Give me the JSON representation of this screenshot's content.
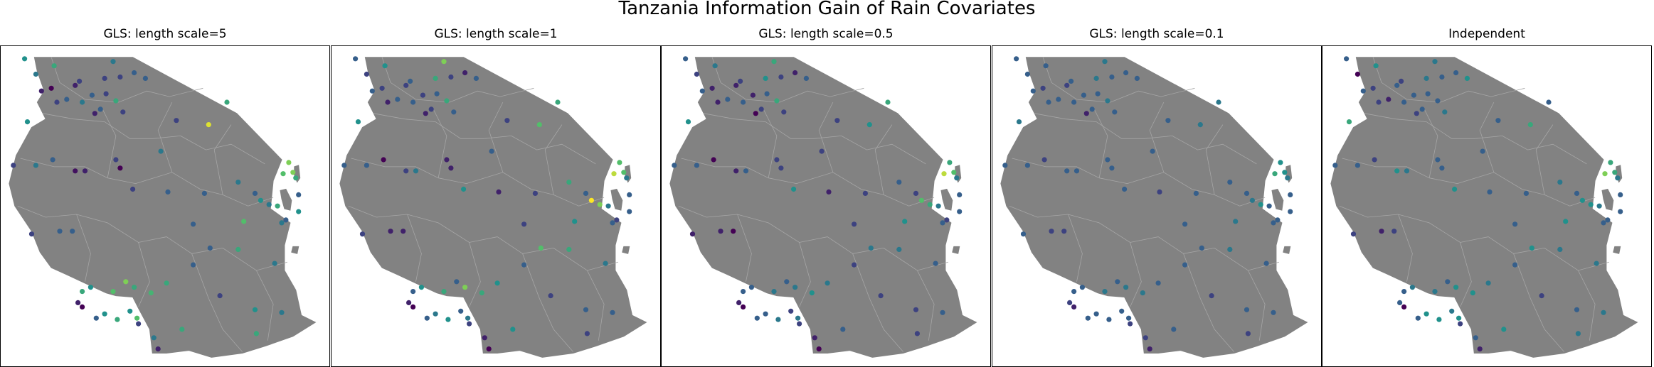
{
  "figure": {
    "title": "Tanzania Information Gain of Rain Covariates"
  },
  "colors": {
    "land": "#828282",
    "border": "#a6a6a6",
    "colormap": [
      "#440154",
      "#3b528b",
      "#21918c",
      "#5ec962",
      "#fde725"
    ]
  },
  "panels": [
    {
      "title": "GLS: length scale=5"
    },
    {
      "title": "GLS: length scale=1"
    },
    {
      "title": "GLS: length scale=0.5"
    },
    {
      "title": "GLS: length scale=0.1"
    },
    {
      "title": "Independent"
    }
  ],
  "chart_data": {
    "type": "scatter",
    "value_range": [
      0,
      1
    ],
    "stations_lon_lat": [
      [
        30.05,
        -1.05
      ],
      [
        30.45,
        -1.6
      ],
      [
        30.65,
        -2.2
      ],
      [
        31.1,
        -1.3
      ],
      [
        31.0,
        -2.1
      ],
      [
        31.2,
        -2.6
      ],
      [
        31.55,
        -2.5
      ],
      [
        31.85,
        -2.0
      ],
      [
        32.0,
        -1.85
      ],
      [
        32.1,
        -2.6
      ],
      [
        32.45,
        -2.35
      ],
      [
        32.55,
        -3.0
      ],
      [
        32.75,
        -2.85
      ],
      [
        32.95,
        -2.3
      ],
      [
        32.9,
        -1.75
      ],
      [
        33.3,
        -2.55
      ],
      [
        33.55,
        -2.95
      ],
      [
        33.2,
        -1.15
      ],
      [
        33.95,
        -1.55
      ],
      [
        34.35,
        -1.75
      ],
      [
        33.45,
        -1.7
      ],
      [
        30.15,
        -3.3
      ],
      [
        29.65,
        -4.85
      ],
      [
        30.45,
        -4.85
      ],
      [
        31.05,
        -4.65
      ],
      [
        31.85,
        -5.05
      ],
      [
        32.2,
        -5.05
      ],
      [
        33.3,
        -4.65
      ],
      [
        33.45,
        -4.95
      ],
      [
        33.9,
        -5.7
      ],
      [
        34.9,
        -4.35
      ],
      [
        35.45,
        -3.25
      ],
      [
        36.6,
        -3.4
      ],
      [
        37.25,
        -2.6
      ],
      [
        35.15,
        -5.8
      ],
      [
        36.45,
        -5.85
      ],
      [
        37.65,
        -5.45
      ],
      [
        38.25,
        -5.85
      ],
      [
        38.45,
        -6.1
      ],
      [
        38.75,
        -6.25
      ],
      [
        39.05,
        -6.3
      ],
      [
        39.2,
        -6.9
      ],
      [
        39.35,
        -6.8
      ],
      [
        39.25,
        -5.15
      ],
      [
        39.45,
        -4.75
      ],
      [
        39.6,
        -5.1
      ],
      [
        39.7,
        -5.3
      ],
      [
        39.8,
        -6.5
      ],
      [
        39.8,
        -5.9
      ],
      [
        37.85,
        -6.85
      ],
      [
        37.65,
        -7.85
      ],
      [
        36.05,
        -6.95
      ],
      [
        30.3,
        -7.3
      ],
      [
        31.3,
        -7.2
      ],
      [
        31.75,
        -7.2
      ],
      [
        32.1,
        -9.35
      ],
      [
        32.4,
        -9.2
      ],
      [
        33.2,
        -9.35
      ],
      [
        33.65,
        -9.0
      ],
      [
        33.95,
        -9.2
      ],
      [
        34.55,
        -9.4
      ],
      [
        35.1,
        -9.05
      ],
      [
        36.05,
        -8.4
      ],
      [
        36.65,
        -7.8
      ],
      [
        37.0,
        -9.5
      ],
      [
        38.95,
        -8.35
      ],
      [
        38.25,
        -10.0
      ],
      [
        39.2,
        -10.1
      ],
      [
        34.65,
        -11.0
      ],
      [
        35.65,
        -10.7
      ],
      [
        34.8,
        -11.4
      ],
      [
        38.3,
        -10.85
      ],
      [
        31.95,
        -9.75
      ],
      [
        32.1,
        -9.9
      ],
      [
        32.9,
        -10.15
      ],
      [
        32.6,
        -10.3
      ],
      [
        33.35,
        -10.35
      ],
      [
        33.8,
        -10.05
      ],
      [
        34.05,
        -10.3
      ],
      [
        34.1,
        -10.5
      ]
    ],
    "series": [
      {
        "name": "GLS: length scale=5",
        "values": [
          0.5,
          0.4,
          0.1,
          0.6,
          0.0,
          0.2,
          0.3,
          0.1,
          0.2,
          0.4,
          0.3,
          0.1,
          0.3,
          0.2,
          0.2,
          0.6,
          0.2,
          0.4,
          0.3,
          0.3,
          0.2,
          0.5,
          0.2,
          0.4,
          0.3,
          0.05,
          0.1,
          0.2,
          0.0,
          0.2,
          0.4,
          0.2,
          0.95,
          0.6,
          0.3,
          0.3,
          0.4,
          0.3,
          0.5,
          0.4,
          0.6,
          0.4,
          0.3,
          0.7,
          0.8,
          0.8,
          0.6,
          0.5,
          0.3,
          0.7,
          0.6,
          0.3,
          0.2,
          0.3,
          0.3,
          0.6,
          0.5,
          0.7,
          0.8,
          0.6,
          0.65,
          0.6,
          0.3,
          0.3,
          0.2,
          0.4,
          0.5,
          0.4,
          0.4,
          0.6,
          0.1,
          0.6,
          0.1,
          0.0,
          0.5,
          0.3,
          0.6,
          0.5,
          0.7,
          0.2
        ]
      },
      {
        "name": "GLS: length scale=1",
        "values": [
          0.3,
          0.2,
          0.3,
          0.5,
          0.2,
          0.1,
          0.3,
          0.2,
          0.3,
          0.3,
          0.2,
          0.1,
          0.2,
          0.3,
          0.6,
          0.6,
          0.3,
          0.8,
          0.1,
          0.3,
          0.2,
          0.5,
          0.3,
          0.3,
          0.0,
          0.2,
          0.4,
          0.1,
          0.1,
          0.5,
          0.3,
          0.2,
          0.7,
          0.6,
          0.1,
          0.2,
          0.6,
          0.3,
          1.0,
          0.8,
          0.4,
          0.3,
          0.2,
          0.9,
          0.7,
          0.7,
          0.4,
          0.3,
          0.3,
          0.5,
          0.6,
          0.2,
          0.2,
          0.1,
          0.1,
          0.3,
          0.5,
          0.6,
          0.3,
          0.8,
          0.6,
          0.5,
          0.3,
          0.7,
          0.2,
          0.4,
          0.3,
          0.3,
          0.1,
          0.5,
          0.0,
          0.2,
          0.1,
          0.0,
          0.4,
          0.3,
          0.5,
          0.3,
          0.4,
          0.2
        ]
      },
      {
        "name": "GLS: length scale=0.5",
        "values": [
          0.3,
          0.2,
          0.3,
          0.4,
          0.1,
          0.1,
          0.3,
          0.1,
          0.2,
          0.3,
          0.1,
          0.0,
          0.2,
          0.3,
          0.5,
          0.6,
          0.2,
          0.6,
          0.1,
          0.3,
          0.2,
          0.5,
          0.3,
          0.3,
          0.0,
          0.1,
          0.3,
          0.2,
          0.2,
          0.5,
          0.2,
          0.2,
          0.5,
          0.6,
          0.1,
          0.2,
          0.3,
          0.2,
          0.7,
          0.6,
          0.4,
          0.3,
          0.2,
          0.9,
          0.6,
          0.7,
          0.4,
          0.3,
          0.3,
          0.5,
          0.4,
          0.2,
          0.1,
          0.1,
          0.0,
          0.3,
          0.3,
          0.4,
          0.3,
          0.4,
          0.5,
          0.4,
          0.2,
          0.4,
          0.2,
          0.3,
          0.2,
          0.3,
          0.1,
          0.3,
          0.0,
          0.2,
          0.1,
          0.0,
          0.3,
          0.3,
          0.4,
          0.2,
          0.4,
          0.2
        ]
      },
      {
        "name": "GLS: length scale=0.1",
        "values": [
          0.3,
          0.3,
          0.3,
          0.3,
          0.2,
          0.3,
          0.3,
          0.2,
          0.3,
          0.3,
          0.3,
          0.1,
          0.3,
          0.3,
          0.4,
          0.4,
          0.3,
          0.4,
          0.3,
          0.3,
          0.3,
          0.4,
          0.3,
          0.3,
          0.2,
          0.3,
          0.3,
          0.3,
          0.3,
          0.3,
          0.3,
          0.3,
          0.4,
          0.4,
          0.2,
          0.3,
          0.3,
          0.3,
          0.4,
          0.5,
          0.3,
          0.3,
          0.3,
          0.6,
          0.5,
          0.5,
          0.4,
          0.3,
          0.3,
          0.4,
          0.4,
          0.3,
          0.3,
          0.2,
          0.2,
          0.3,
          0.3,
          0.4,
          0.3,
          0.4,
          0.4,
          0.3,
          0.3,
          0.3,
          0.2,
          0.3,
          0.3,
          0.3,
          0.2,
          0.3,
          0.1,
          0.2,
          0.2,
          0.1,
          0.3,
          0.3,
          0.3,
          0.3,
          0.3,
          0.2
        ]
      },
      {
        "name": "Independent",
        "values": [
          0.3,
          0.0,
          0.3,
          0.5,
          0.2,
          0.2,
          0.1,
          0.3,
          0.2,
          0.3,
          0.3,
          0.2,
          0.3,
          0.3,
          0.4,
          0.3,
          0.4,
          0.4,
          0.3,
          0.5,
          0.3,
          0.6,
          0.3,
          0.3,
          0.2,
          0.5,
          0.4,
          0.3,
          0.3,
          0.5,
          0.3,
          0.3,
          0.6,
          0.3,
          0.3,
          0.3,
          0.4,
          0.3,
          0.5,
          0.5,
          0.4,
          0.3,
          0.3,
          0.8,
          0.6,
          0.6,
          0.4,
          0.3,
          0.3,
          0.5,
          0.4,
          0.3,
          0.2,
          0.1,
          0.2,
          0.3,
          0.4,
          0.4,
          0.3,
          0.5,
          0.5,
          0.4,
          0.3,
          0.5,
          0.2,
          0.4,
          0.3,
          0.4,
          0.3,
          0.5,
          0.1,
          0.4,
          0.3,
          0.0,
          0.5,
          0.3,
          0.5,
          0.4,
          0.5,
          0.2
        ]
      }
    ]
  }
}
